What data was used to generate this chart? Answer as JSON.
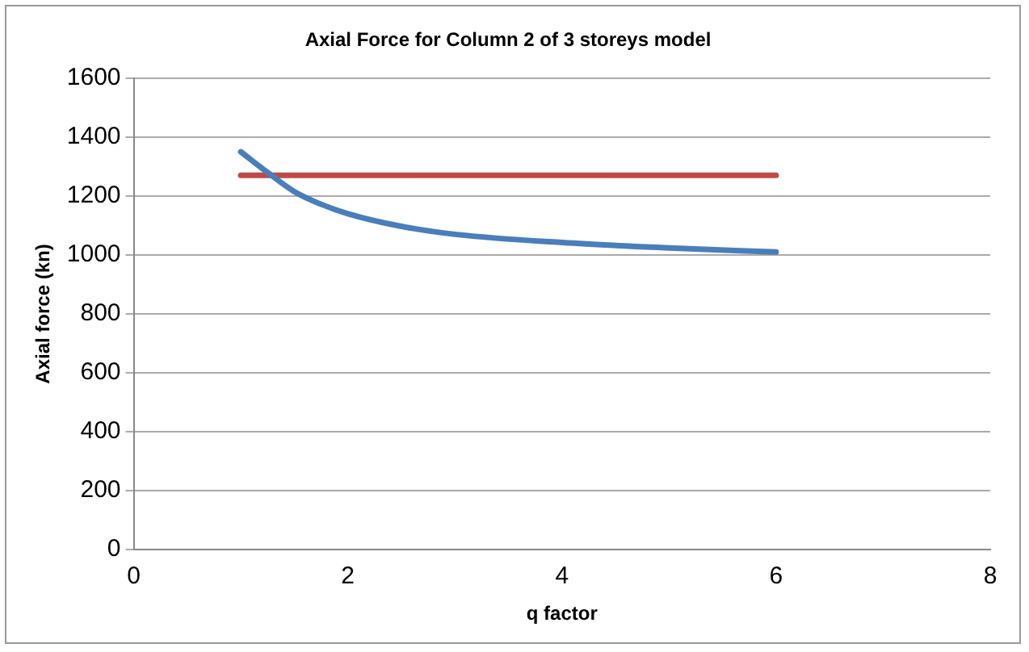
{
  "chart_data": {
    "type": "line",
    "title": "Axial Force for Column 2 of 3 storeys model",
    "xlabel": "q factor",
    "ylabel": "Axial force (kn)",
    "series": [
      {
        "color": "#4a7ebb",
        "x": [
          1,
          1.25,
          1.5,
          1.75,
          2,
          2.5,
          3,
          4,
          5,
          6
        ],
        "values": [
          1350,
          1280,
          1215,
          1172,
          1140,
          1097,
          1070,
          1042,
          1024,
          1010
        ]
      },
      {
        "color": "#be4b48",
        "x": [
          1,
          6
        ],
        "values": [
          1270,
          1270
        ]
      }
    ],
    "xlim": [
      0,
      8
    ],
    "xticks": [
      0,
      2,
      4,
      6,
      8
    ],
    "ylim": [
      0,
      1600
    ],
    "yticks": [
      0,
      200,
      400,
      600,
      800,
      1000,
      1200,
      1400,
      1600
    ],
    "grid": "y",
    "legend": false,
    "marker": "none"
  }
}
